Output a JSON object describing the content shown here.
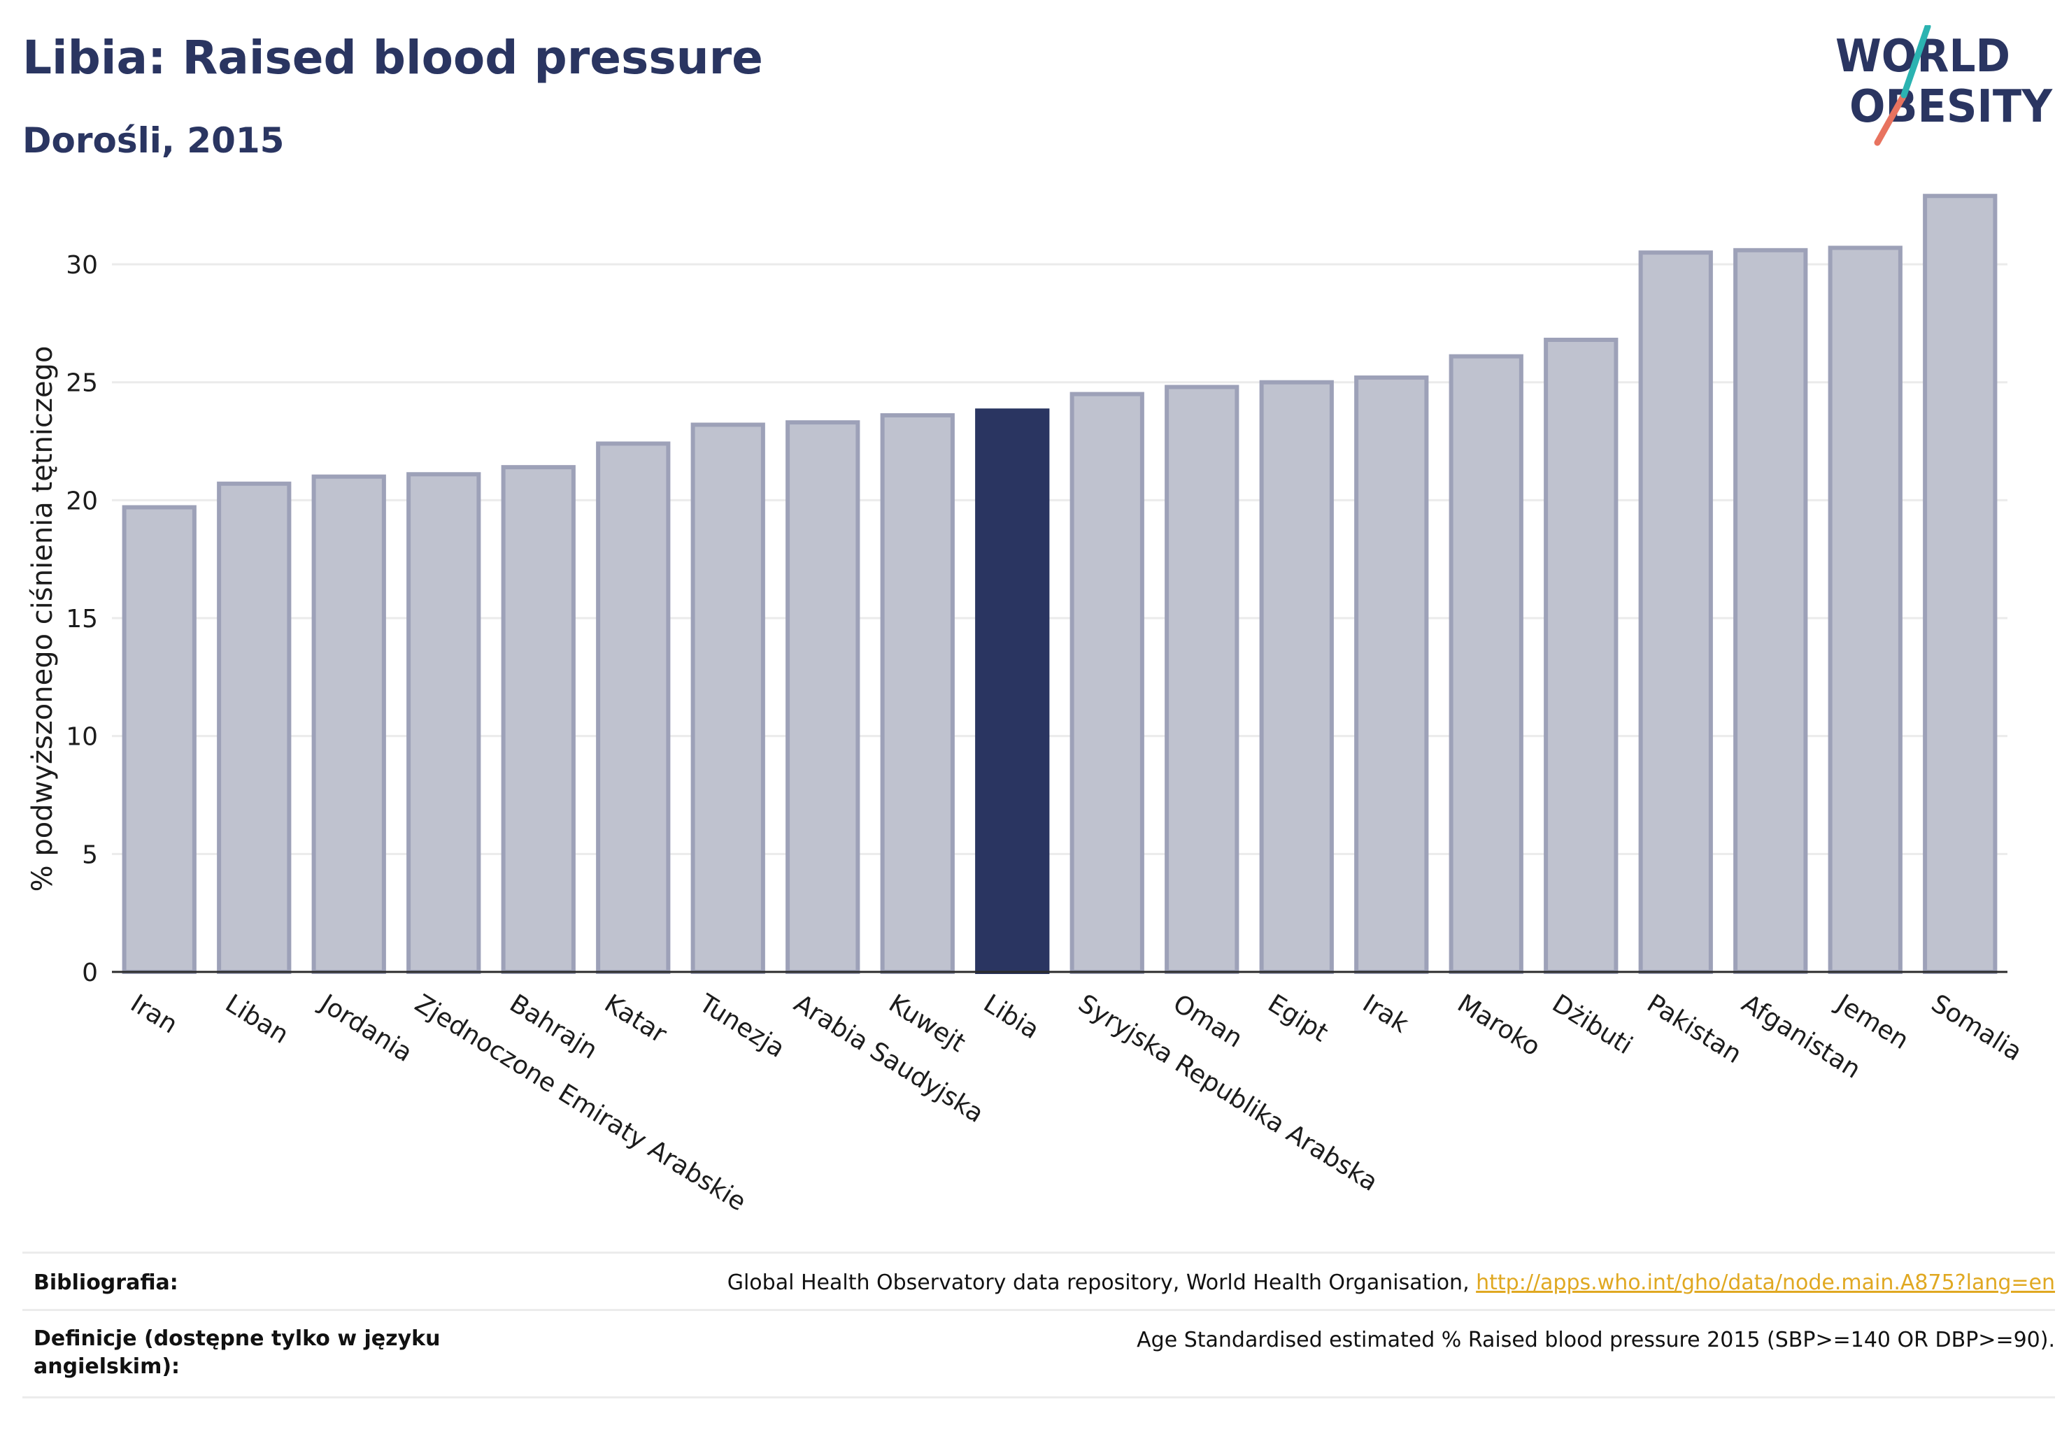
{
  "header": {
    "title": "Libia: Raised blood pressure",
    "subtitle": "Dorośli, 2015"
  },
  "logo": {
    "line1": "WORLD",
    "line2": "OBESITY",
    "colors": {
      "text": "#2a3561",
      "teal": "#2bb3b1",
      "coral": "#e8735f"
    }
  },
  "chart_data": {
    "type": "bar",
    "title": "",
    "xlabel": "",
    "ylabel": "% podwyższonego ciśnienia tętniczego",
    "ylim": [
      0,
      33.5
    ],
    "yticks": [
      0,
      5,
      10,
      15,
      20,
      25,
      30
    ],
    "grid": true,
    "highlight": "Libia",
    "colors": {
      "bar": "#bfc2cf",
      "bar_edge": "#9da1b8",
      "highlight": "#2a3561"
    },
    "categories": [
      "Iran",
      "Liban",
      "Jordania",
      "Zjednoczone Emiraty Arabskie",
      "Bahrajn",
      "Katar",
      "Tunezja",
      "Arabia Saudyjska",
      "Kuwejt",
      "Libia",
      "Syryjska Republika Arabska",
      "Oman",
      "Egipt",
      "Irak",
      "Maroko",
      "Dżibuti",
      "Pakistan",
      "Afganistan",
      "Jemen",
      "Somalia"
    ],
    "values": [
      19.7,
      20.7,
      21.0,
      21.1,
      21.4,
      22.4,
      23.2,
      23.3,
      23.6,
      23.8,
      24.5,
      24.8,
      25.0,
      25.2,
      26.1,
      26.8,
      30.5,
      30.6,
      30.7,
      32.9
    ]
  },
  "footer": {
    "bibliography_label": "Bibliografia:",
    "bibliography_text": "Global Health Observatory data repository, World Health Organisation, ",
    "bibliography_link": "http://apps.who.int/gho/data/node.main.A875?lang=en",
    "definition_label": "Definicje (dostępne tylko w języku angielskim):",
    "definition_text": "Age Standardised estimated % Raised blood pressure 2015 (SBP>=140 OR DBP>=90)."
  }
}
